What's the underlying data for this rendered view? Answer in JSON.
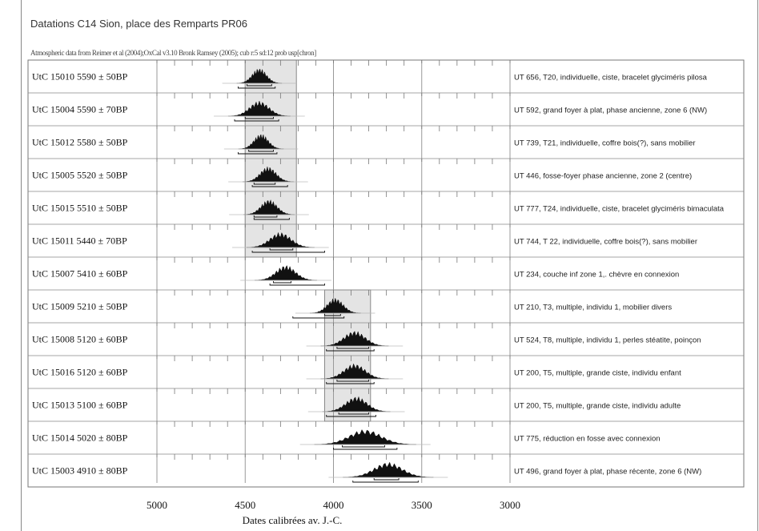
{
  "title": "Datations C14 Sion, place des Remparts PR06",
  "subtitle": "Atmospheric data from Reimer et al (2004);OxCal v3.10 Bronk Ramsey (2005); cub r:5 sd:12 prob usp[chron]",
  "chart_data": {
    "type": "calibrated radiocarbon multiplot",
    "xlabel": "Dates calibrées av. J.-C.",
    "xlim": [
      5000,
      3000
    ],
    "xticks": [
      "5000",
      "4500",
      "4000",
      "3500",
      "3000"
    ],
    "reference_lines": [
      4500,
      4000,
      3500
    ],
    "shaded_periods": [
      {
        "from": 4500,
        "to": 4210,
        "rows": [
          0,
          5
        ]
      },
      {
        "from": 4050,
        "to": 3790,
        "rows": [
          7,
          10
        ]
      }
    ],
    "series": [
      {
        "label": "UtC 15010  5590 ± 50BP",
        "description": "UT 656, T20, individuelle, ciste, bracelet glyciméris pilosa",
        "center": 4420,
        "sd": 40,
        "range68": [
          4490,
          4350
        ],
        "range95": [
          4540,
          4330
        ]
      },
      {
        "label": "UtC 15004  5590 ± 70BP",
        "description": "UT 592, grand foyer à plat, phase ancienne, zone 6 (NW)",
        "center": 4420,
        "sd": 55,
        "range68": [
          4500,
          4340
        ],
        "range95": [
          4560,
          4310
        ]
      },
      {
        "label": "UtC 15012  5580 ± 50BP",
        "description": "UT 739, T21, individuelle, coffre bois(?), sans mobilier",
        "center": 4410,
        "sd": 40,
        "range68": [
          4480,
          4340
        ],
        "range95": [
          4540,
          4320
        ]
      },
      {
        "label": "UtC 15005  5520 ± 50BP",
        "description": "UT 446, fosse-foyer phase ancienne, zone 2 (centre)",
        "center": 4370,
        "sd": 45,
        "range68": [
          4450,
          4330
        ],
        "range95": [
          4460,
          4260
        ]
      },
      {
        "label": "UtC 15015  5510 ± 50BP",
        "description": "UT 777, T24, individuelle, ciste, bracelet glyciméris bimaculata",
        "center": 4365,
        "sd": 45,
        "range68": [
          4450,
          4320
        ],
        "range95": [
          4450,
          4250
        ]
      },
      {
        "label": "UtC 15011  5440 ± 70BP",
        "description": "UT 744, T 22, individuelle, coffre bois(?), sans mobilier",
        "center": 4300,
        "sd": 60,
        "range68": [
          4360,
          4230
        ],
        "range95": [
          4460,
          4050
        ]
      },
      {
        "label": "UtC 15007  5410 ± 60BP",
        "description": "UT 234, couche inf zone 1,. chèvre en connexion",
        "center": 4270,
        "sd": 55,
        "range68": [
          4340,
          4240
        ],
        "range95": [
          4360,
          4050
        ]
      },
      {
        "label": "UtC 15009  5210 ± 50BP",
        "description": "UT 210, T3, multiple, individu 1, mobilier divers",
        "center": 3990,
        "sd": 45,
        "range68": [
          4050,
          3960
        ],
        "range95": [
          4230,
          3940
        ]
      },
      {
        "label": "UtC 15008  5120 ± 60BP",
        "description": "UT 524, T8, multiple, individu 1, perles stéatite, poinçon",
        "center": 3880,
        "sd": 60,
        "range68": [
          3980,
          3800
        ],
        "range95": [
          4040,
          3770
        ]
      },
      {
        "label": "UtC 15016  5120 ± 60BP",
        "description": "UT 200, T5, multiple, grande ciste, individu enfant",
        "center": 3880,
        "sd": 60,
        "range68": [
          3980,
          3800
        ],
        "range95": [
          4040,
          3770
        ]
      },
      {
        "label": "UtC 15013  5100 ± 60BP",
        "description": "UT 200, T5, multiple, grande ciste, individu adulte",
        "center": 3870,
        "sd": 60,
        "range68": [
          3970,
          3800
        ],
        "range95": [
          4040,
          3760
        ]
      },
      {
        "label": "UtC 15014  5020 ± 80BP",
        "description": "UT 775, réduction en fosse avec connexion",
        "center": 3820,
        "sd": 90,
        "range68": [
          3950,
          3710
        ],
        "range95": [
          4000,
          3640
        ]
      },
      {
        "label": "UtC 15003  4910 ± 80BP",
        "description": "UT 496, grand foyer à plat, phase récente, zone 6 (NW)",
        "center": 3690,
        "sd": 80,
        "range68": [
          3770,
          3630
        ],
        "range95": [
          3890,
          3520
        ]
      }
    ]
  }
}
